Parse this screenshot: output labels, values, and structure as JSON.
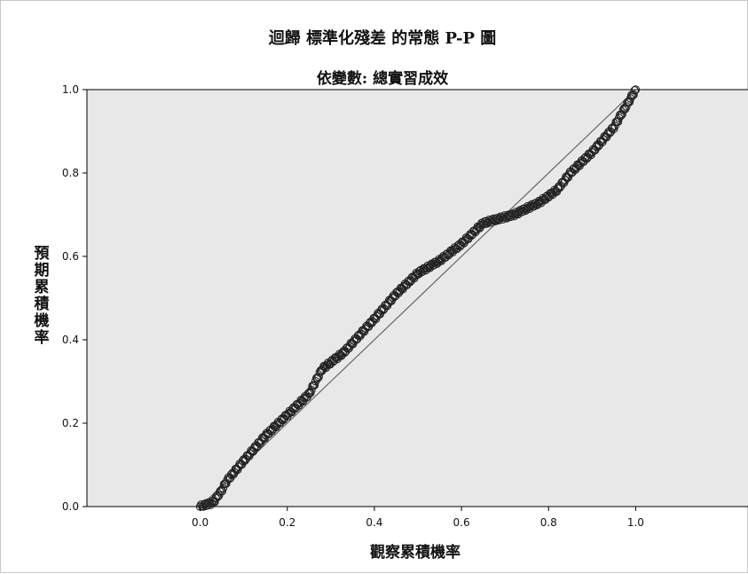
{
  "chart_data": {
    "type": "scatter",
    "title": "迴歸 標準化殘差 的常態 P-P 圖",
    "subtitle": "依變數: 總實習成效",
    "xlabel": "觀察累積機率",
    "ylabel": "預期累積機率",
    "xlim": [
      -0.26,
      1.26
    ],
    "ylim": [
      0.0,
      1.0
    ],
    "xticks": [
      0.0,
      0.2,
      0.4,
      0.6,
      0.8,
      1.0
    ],
    "yticks": [
      0.0,
      0.2,
      0.4,
      0.6,
      0.8,
      1.0
    ],
    "tick_format": "0.0",
    "grid": false,
    "legend": "none",
    "reference_line": {
      "from": [
        0.0,
        0.0
      ],
      "to": [
        1.0,
        1.0
      ]
    },
    "series_curve": [
      [
        0.0,
        0.0
      ],
      [
        0.03,
        0.01
      ],
      [
        0.05,
        0.04
      ],
      [
        0.06,
        0.06
      ],
      [
        0.1,
        0.11
      ],
      [
        0.15,
        0.17
      ],
      [
        0.2,
        0.22
      ],
      [
        0.25,
        0.27
      ],
      [
        0.28,
        0.33
      ],
      [
        0.33,
        0.37
      ],
      [
        0.4,
        0.45
      ],
      [
        0.45,
        0.51
      ],
      [
        0.5,
        0.56
      ],
      [
        0.55,
        0.59
      ],
      [
        0.6,
        0.63
      ],
      [
        0.65,
        0.68
      ],
      [
        0.72,
        0.7
      ],
      [
        0.78,
        0.73
      ],
      [
        0.82,
        0.76
      ],
      [
        0.85,
        0.8
      ],
      [
        0.9,
        0.85
      ],
      [
        0.95,
        0.91
      ],
      [
        1.0,
        1.0
      ]
    ],
    "point_count": 420,
    "colors": {
      "plot_background": "#e8e8e8",
      "marker": "#222222",
      "line": "#666666",
      "axis": "#000000"
    }
  }
}
